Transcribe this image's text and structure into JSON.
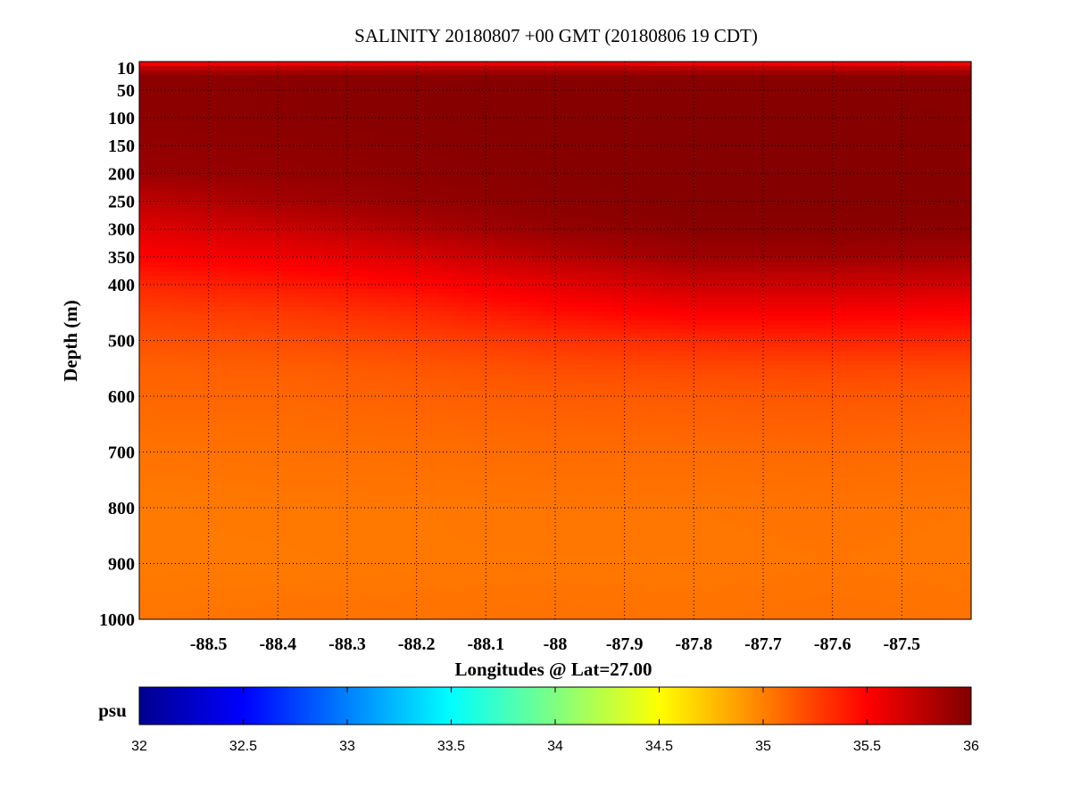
{
  "chart_data": {
    "type": "heatmap",
    "title": "SALINITY 20180807 +00 GMT (20180806 19 CDT)",
    "xlabel": "Longitudes @ Lat=27.00",
    "ylabel": "Depth (m)",
    "xlim": [
      -88.6,
      -87.4
    ],
    "x_ticks": [
      -88.5,
      -88.4,
      -88.3,
      -88.2,
      -88.1,
      -88,
      -87.9,
      -87.8,
      -87.7,
      -87.6,
      -87.5
    ],
    "x_tick_labels": [
      "-88.5",
      "-88.4",
      "-88.3",
      "-88.2",
      "-88.1",
      "-88",
      "-87.9",
      "-87.8",
      "-87.7",
      "-87.6",
      "-87.5"
    ],
    "y_ticks": [
      10,
      50,
      100,
      150,
      200,
      250,
      300,
      350,
      400,
      500,
      600,
      700,
      800,
      900,
      1000
    ],
    "y_tick_labels": [
      "10",
      "50",
      "100",
      "150",
      "200",
      "250",
      "300",
      "350",
      "400",
      "500",
      "600",
      "700",
      "800",
      "900",
      "1000"
    ],
    "grid": true,
    "colorbar": {
      "unit": "psu",
      "range": [
        32,
        36
      ],
      "ticks": [
        32,
        32.5,
        33,
        33.5,
        34,
        34.5,
        35,
        35.5,
        36
      ],
      "tick_labels": [
        "32",
        "32.5",
        "33",
        "33.5",
        "34",
        "34.5",
        "35",
        "35.5",
        "36"
      ],
      "colormap": "jet"
    },
    "sample_longitudes": [
      -88.6,
      -88.4,
      -88.2,
      -88.0,
      -87.8,
      -87.6,
      -87.4
    ],
    "sample_depths": [
      0,
      10,
      25,
      100,
      200,
      250,
      300,
      350,
      400,
      450,
      500,
      550,
      600,
      700,
      800,
      900,
      1000
    ],
    "values": [
      [
        35.45,
        35.48,
        35.5,
        35.5,
        35.48,
        35.47,
        35.45
      ],
      [
        35.75,
        35.76,
        35.78,
        35.78,
        35.77,
        35.76,
        35.75
      ],
      [
        35.95,
        35.96,
        35.97,
        35.97,
        35.97,
        35.97,
        35.96
      ],
      [
        35.95,
        35.96,
        35.97,
        35.98,
        35.98,
        35.98,
        35.97
      ],
      [
        35.9,
        35.92,
        35.95,
        35.97,
        35.98,
        35.98,
        35.97
      ],
      [
        35.75,
        35.85,
        35.92,
        35.96,
        35.98,
        35.98,
        35.97
      ],
      [
        35.62,
        35.7,
        35.82,
        35.92,
        35.96,
        35.96,
        35.95
      ],
      [
        35.5,
        35.55,
        35.65,
        35.78,
        35.88,
        35.88,
        35.86
      ],
      [
        35.35,
        35.4,
        35.48,
        35.6,
        35.7,
        35.7,
        35.68
      ],
      [
        35.25,
        35.28,
        35.34,
        35.45,
        35.52,
        35.52,
        35.5
      ],
      [
        35.18,
        35.2,
        35.24,
        35.3,
        35.34,
        35.36,
        35.35
      ],
      [
        35.12,
        35.13,
        35.16,
        35.2,
        35.22,
        35.23,
        35.22
      ],
      [
        35.1,
        35.1,
        35.12,
        35.14,
        35.15,
        35.16,
        35.15
      ],
      [
        35.05,
        35.06,
        35.07,
        35.08,
        35.08,
        35.09,
        35.08
      ],
      [
        35.02,
        35.03,
        35.03,
        35.04,
        35.04,
        35.05,
        35.04
      ],
      [
        35.02,
        35.02,
        35.03,
        35.03,
        35.03,
        35.04,
        35.03
      ],
      [
        35.04,
        35.05,
        35.05,
        35.06,
        35.05,
        35.06,
        35.05
      ]
    ]
  }
}
